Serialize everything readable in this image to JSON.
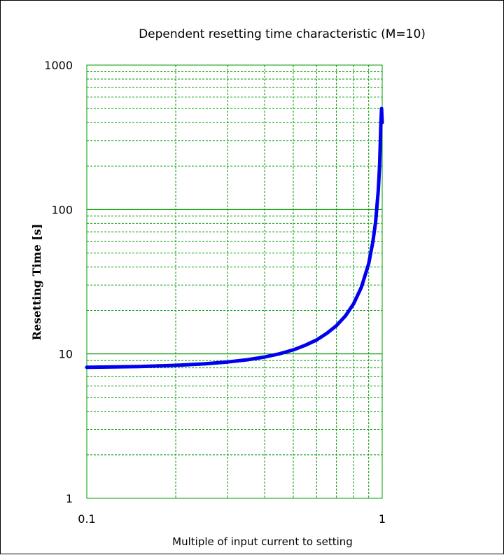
{
  "chart_data": {
    "type": "line",
    "title": "Dependent resetting time characteristic (M=10)",
    "xlabel": "Multiple of input current to setting",
    "ylabel": "Resetting Time [s]",
    "x_scale": "log",
    "y_scale": "log",
    "xlim": [
      0.1,
      1
    ],
    "ylim": [
      1,
      1000
    ],
    "x_ticks": [
      "0.1",
      "1"
    ],
    "y_ticks": [
      "1",
      "10",
      "100",
      "1000"
    ],
    "grid": true,
    "grid_color": "#009900",
    "line_color": "#0000ee",
    "series": [
      {
        "x": [
          0.1,
          0.15,
          0.2,
          0.25,
          0.3,
          0.35,
          0.4,
          0.45,
          0.5,
          0.55,
          0.6,
          0.65,
          0.7,
          0.75,
          0.8,
          0.85,
          0.9,
          0.93,
          0.95,
          0.97,
          0.98,
          0.99,
          0.995,
          1.0
        ],
        "y": [
          8.08,
          8.18,
          8.33,
          8.53,
          8.79,
          9.11,
          9.52,
          10.03,
          10.67,
          11.49,
          12.5,
          13.89,
          15.69,
          18.29,
          22.22,
          28.88,
          42.11,
          59.9,
          82.05,
          135.3,
          202.0,
          402.0,
          500.0,
          400.0
        ]
      }
    ]
  }
}
